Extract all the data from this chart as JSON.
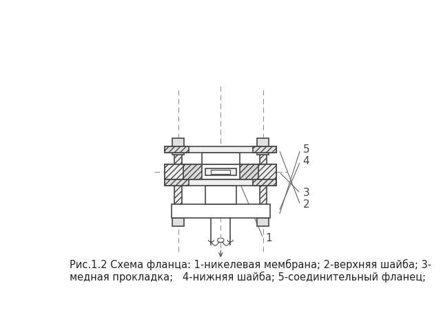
{
  "bg_color": "#ffffff",
  "lc": "#444444",
  "lc_thin": "#666666",
  "lc_center": "#888888",
  "fill_white": "#ffffff",
  "fill_hatch": "#d8d8d8",
  "fill_light": "#efefef",
  "fill_mid": "#e0e0e0",
  "caption_line1": "Рис.1.2 Схема фланца: 1-никелевая мембрана; 2-верхняя шайба; 3-",
  "caption_line2": "медная прокладка;   4-нижняя шайба; 5-соединительный фланец;",
  "caption_fontsize": 10.5,
  "label_fontsize": 11
}
